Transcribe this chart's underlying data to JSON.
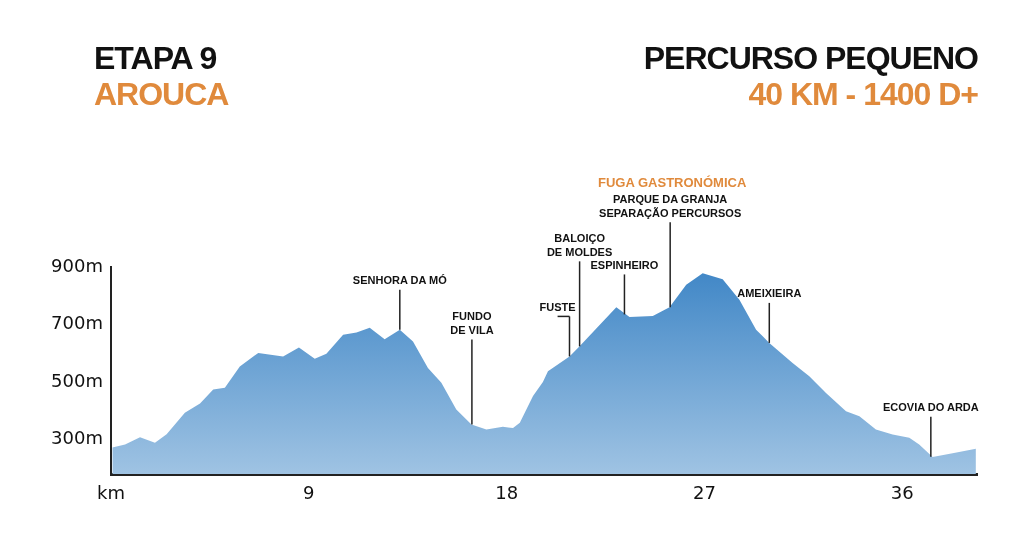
{
  "chart_data": {
    "type": "area",
    "title": "ETAPA 9",
    "subtitle": "AROUCA",
    "x": [
      0.06,
      0.64,
      1.32,
      2.0,
      2.53,
      3.36,
      4.05,
      4.65,
      5.18,
      5.86,
      6.7,
      7.83,
      8.55,
      9.27,
      9.8,
      10.56,
      11.17,
      11.77,
      12.45,
      13.14,
      13.74,
      14.42,
      15.03,
      15.71,
      16.4,
      17.08,
      17.83,
      18.29,
      18.6,
      19.2,
      19.65,
      19.88,
      20.86,
      21.32,
      22.99,
      23.59,
      24.65,
      25.41,
      26.17,
      26.92,
      27.83,
      28.59,
      29.35,
      29.95,
      31.01,
      31.77,
      32.53,
      33.44,
      34.05,
      34.8,
      35.56,
      36.32,
      36.77,
      37.38,
      38.29,
      39.35
    ],
    "series": [
      {
        "color": "#3f86c6",
        "values": [
          272,
          283,
          308,
          289,
          318,
          393,
          425,
          474,
          480,
          554,
          601,
          589,
          620,
          581,
          598,
          664,
          672,
          689,
          649,
          682,
          641,
          549,
          497,
          404,
          352,
          335,
          344,
          340,
          358,
          451,
          500,
          537,
          589,
          624,
          760,
          726,
          730,
          760,
          838,
          878,
          857,
          786,
          682,
          636,
          566,
          520,
          462,
          398,
          381,
          335,
          317,
          306,
          283,
          239,
          252,
          268
        ]
      }
    ],
    "xlim": [
      0,
      39.4
    ],
    "xticks": [
      {
        "value": 0,
        "label": "km"
      },
      9,
      18,
      27,
      36
    ],
    "ylim": [
      180,
      900
    ],
    "yticks": [
      {
        "value": 300,
        "label": "300m"
      },
      {
        "value": 500,
        "label": "500m"
      },
      {
        "value": 700,
        "label": "700m"
      },
      {
        "value": 900,
        "label": "900m"
      }
    ],
    "grid": false,
    "legend": false,
    "annotations": [
      "PERCURSO PEQUENO",
      "40 KM - 1400 D+",
      "FUGA GASTRONÓMICA",
      {
        "text": "SENHORA DA MÓ",
        "x": 13.14,
        "y": 682
      },
      {
        "text": "FUNDO\nDE VILA",
        "x": 16.42,
        "y": 352
      },
      {
        "text": "FUSTE",
        "x": 20.86,
        "y": 589
      },
      {
        "text": "BALOIÇO\nDE MOLDES",
        "x": 21.32,
        "y": 624
      },
      {
        "text": "ESPINHEIRO",
        "x": 23.36,
        "y": 735
      },
      {
        "text": "PARQUE DA GRANJA\nSEPARAÇÃO PERCURSOS",
        "x": 25.44,
        "y": 760
      },
      {
        "text": "AMEIXIEIRA",
        "x": 29.95,
        "y": 636
      },
      {
        "text": "ECOVIA DO ARDA",
        "x": 37.3,
        "y": 240
      }
    ]
  }
}
